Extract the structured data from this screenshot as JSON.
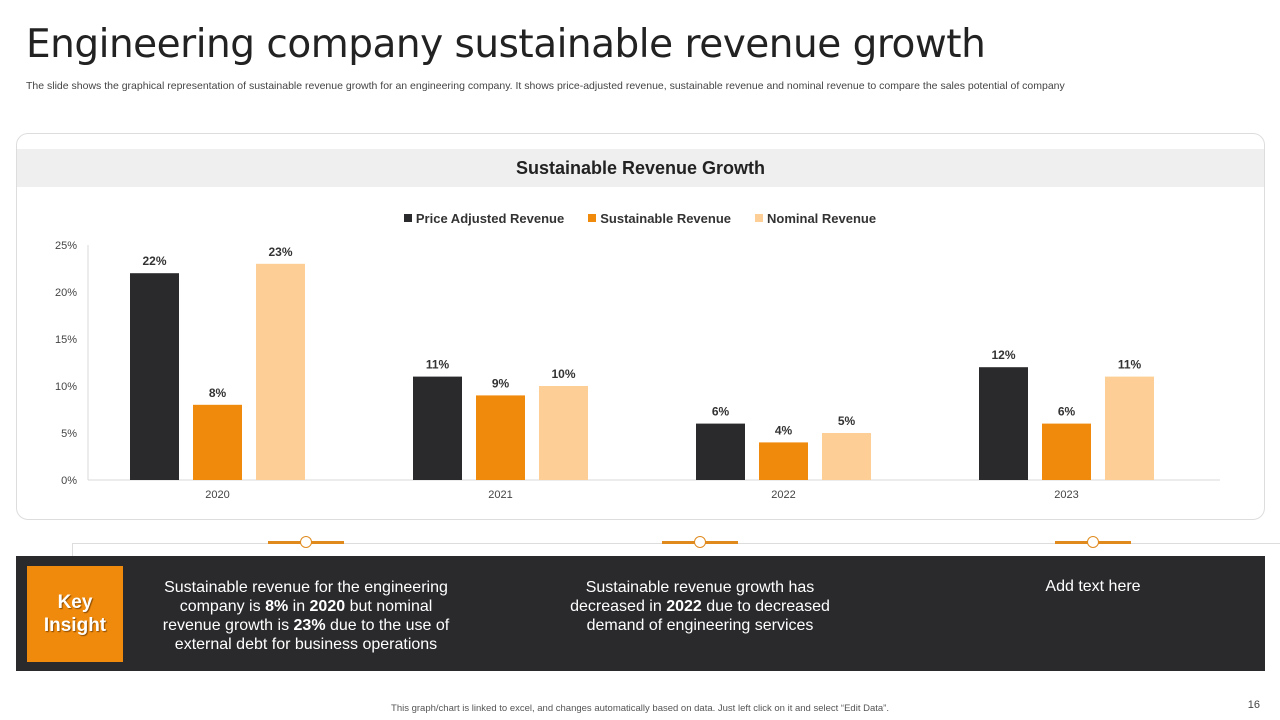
{
  "title": "Engineering company sustainable revenue growth",
  "subtitle": "The slide shows the graphical representation of sustainable revenue growth for an engineering company. It shows price-adjusted revenue, sustainable revenue and nominal revenue to compare the sales potential of company",
  "chart_data": {
    "type": "bar",
    "title": "Sustainable Revenue Growth",
    "categories": [
      "2020",
      "2021",
      "2022",
      "2023"
    ],
    "series": [
      {
        "name": "Price Adjusted Revenue",
        "color": "#2a2a2d",
        "values": [
          22,
          11,
          6,
          12
        ]
      },
      {
        "name": "Sustainable Revenue",
        "color": "#ef8a0c",
        "values": [
          8,
          9,
          4,
          6
        ]
      },
      {
        "name": "Nominal Revenue",
        "color": "#fdcf96",
        "values": [
          23,
          10,
          5,
          11
        ]
      }
    ],
    "yticks": [
      "0%",
      "5%",
      "10%",
      "15%",
      "20%",
      "25%"
    ],
    "ylim": [
      0,
      25
    ],
    "value_suffix": "%",
    "legend": "top",
    "grid": false
  },
  "insights": {
    "key_label_1": "Key",
    "key_label_2": "Insight",
    "i1": {
      "a": "Sustainable revenue for the engineering company is ",
      "b": "8%",
      "c": " in ",
      "d": "2020",
      "e": " but nominal revenue growth is ",
      "f": "23%",
      "g": " due to the use of external debt for business operations"
    },
    "i2": {
      "a": "Sustainable revenue growth has decreased in ",
      "b": "2022",
      "c": " due to decreased demand of engineering services"
    },
    "i3": "Add text here"
  },
  "footer": "This graph/chart is linked to excel, and changes automatically based on data. Just left click on it and select “Edit Data”.",
  "page_number": "16"
}
